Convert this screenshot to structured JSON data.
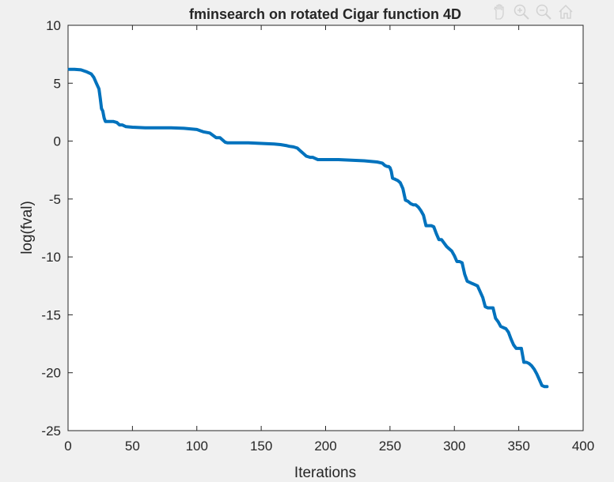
{
  "chart_data": {
    "type": "line",
    "title": "fminsearch on rotated Cigar function 4D",
    "xlabel": "Iterations",
    "ylabel": "log(fval)",
    "xlim": [
      0,
      400
    ],
    "ylim": [
      -25,
      10
    ],
    "xticks": [
      0,
      50,
      100,
      150,
      200,
      250,
      300,
      350,
      400
    ],
    "yticks": [
      10,
      5,
      0,
      -5,
      -10,
      -15,
      -20,
      -25
    ],
    "grid": false,
    "series": [
      {
        "color": "#0072BD",
        "x": [
          1,
          5,
          10,
          14,
          18,
          20,
          22,
          24,
          25,
          26,
          27,
          28,
          29,
          30,
          32,
          35,
          38,
          40,
          42,
          45,
          50,
          60,
          70,
          80,
          90,
          100,
          105,
          110,
          115,
          118,
          120,
          122,
          124,
          126,
          130,
          140,
          150,
          160,
          165,
          170,
          172,
          175,
          178,
          180,
          182,
          185,
          188,
          190,
          192,
          194,
          196,
          200,
          210,
          220,
          230,
          235,
          240,
          244,
          246,
          248,
          249,
          250,
          251,
          252,
          254,
          256,
          258,
          260,
          262,
          264,
          266,
          268,
          270,
          272,
          274,
          276,
          278,
          280,
          282,
          284,
          286,
          288,
          290,
          292,
          294,
          296,
          298,
          300,
          302,
          304,
          306,
          308,
          310,
          312,
          314,
          316,
          318,
          320,
          322,
          324,
          326,
          328,
          330,
          332,
          334,
          336,
          338,
          340,
          342,
          344,
          346,
          348,
          350,
          352,
          354,
          356,
          358,
          360,
          362,
          364,
          366,
          368,
          370,
          372
        ],
        "y": [
          6.2,
          6.2,
          6.15,
          6.0,
          5.8,
          5.5,
          5.0,
          4.5,
          3.7,
          2.8,
          2.6,
          2.0,
          1.7,
          1.7,
          1.7,
          1.7,
          1.6,
          1.4,
          1.4,
          1.25,
          1.2,
          1.15,
          1.15,
          1.15,
          1.1,
          1.0,
          0.8,
          0.7,
          0.3,
          0.3,
          0.1,
          -0.1,
          -0.15,
          -0.15,
          -0.15,
          -0.15,
          -0.2,
          -0.25,
          -0.3,
          -0.4,
          -0.45,
          -0.5,
          -0.6,
          -0.8,
          -1.0,
          -1.3,
          -1.4,
          -1.4,
          -1.5,
          -1.6,
          -1.6,
          -1.6,
          -1.6,
          -1.65,
          -1.7,
          -1.75,
          -1.8,
          -1.9,
          -2.1,
          -2.2,
          -2.2,
          -2.3,
          -2.6,
          -3.2,
          -3.3,
          -3.4,
          -3.6,
          -4.1,
          -5.1,
          -5.2,
          -5.4,
          -5.5,
          -5.5,
          -5.7,
          -6.0,
          -6.4,
          -7.3,
          -7.3,
          -7.3,
          -7.4,
          -8.0,
          -8.5,
          -8.5,
          -8.8,
          -9.1,
          -9.3,
          -9.5,
          -9.9,
          -10.4,
          -10.4,
          -10.5,
          -11.5,
          -12.1,
          -12.2,
          -12.3,
          -12.4,
          -12.5,
          -13.0,
          -13.5,
          -14.3,
          -14.4,
          -14.4,
          -14.4,
          -15.3,
          -15.6,
          -16.0,
          -16.1,
          -16.2,
          -16.5,
          -17.1,
          -17.6,
          -17.9,
          -17.9,
          -17.9,
          -19.1,
          -19.1,
          -19.2,
          -19.4,
          -19.7,
          -20.1,
          -20.6,
          -21.1,
          -21.2,
          -21.2
        ]
      }
    ]
  },
  "toolbar": {
    "icons": [
      "pan-icon",
      "zoom-in-icon",
      "zoom-out-icon",
      "home-icon"
    ]
  }
}
